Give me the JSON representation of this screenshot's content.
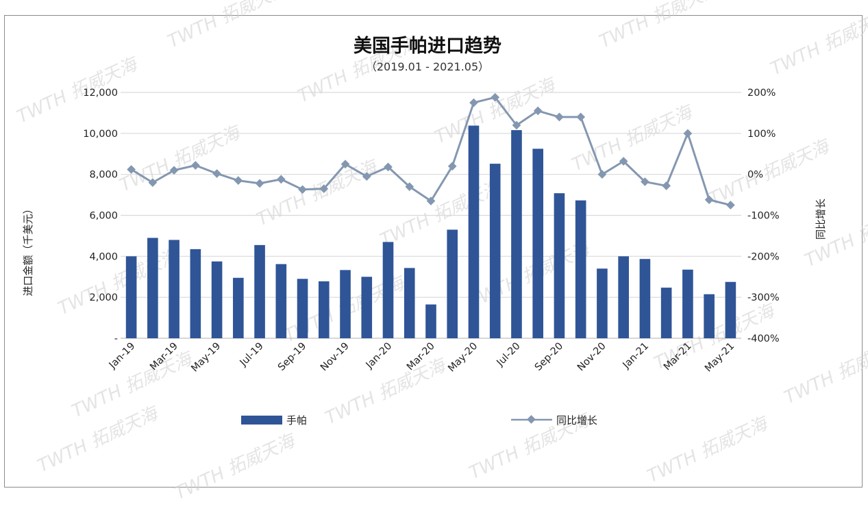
{
  "watermark": "TWTH 拓威天海",
  "chart_data": {
    "type": "bar",
    "title": "美国手帕进口趋势",
    "subtitle": "（2019.01 - 2021.05）",
    "ylabel": "进口金额（千美元）",
    "y2label": "同比增长",
    "ylim": [
      0,
      12000
    ],
    "y_ticks": [
      "-",
      "2,000",
      "4,000",
      "6,000",
      "8,000",
      "10,000",
      "12,000"
    ],
    "y2lim": [
      -400,
      200
    ],
    "y2_ticks": [
      "-400%",
      "-300%",
      "-200%",
      "-100%",
      "0%",
      "100%",
      "200%"
    ],
    "grid": true,
    "legend_position": "bottom",
    "categories": [
      "Jan-19",
      "Feb-19",
      "Mar-19",
      "Apr-19",
      "May-19",
      "Jun-19",
      "Jul-19",
      "Aug-19",
      "Sep-19",
      "Oct-19",
      "Nov-19",
      "Dec-19",
      "Jan-20",
      "Feb-20",
      "Mar-20",
      "Apr-20",
      "May-20",
      "Jun-20",
      "Jul-20",
      "Aug-20",
      "Sep-20",
      "Oct-20",
      "Nov-20",
      "Dec-20",
      "Jan-21",
      "Feb-21",
      "Mar-21",
      "Apr-21",
      "May-21"
    ],
    "x_tick_labels": [
      "Jan-19",
      "",
      "Mar-19",
      "",
      "May-19",
      "",
      "Jul-19",
      "",
      "Sep-19",
      "",
      "Nov-19",
      "",
      "Jan-20",
      "",
      "Mar-20",
      "",
      "May-20",
      "",
      "Jul-20",
      "",
      "Sep-20",
      "",
      "Nov-20",
      "",
      "Jan-21",
      "",
      "Mar-21",
      "",
      "May-21"
    ],
    "series": [
      {
        "name": "手帕",
        "kind": "bar",
        "axis": "left",
        "color": "#2f5597",
        "values": [
          4000,
          4900,
          4800,
          4350,
          3750,
          2950,
          4550,
          3620,
          2900,
          2780,
          3330,
          3000,
          4700,
          3430,
          1650,
          5300,
          10380,
          8520,
          10160,
          9250,
          7080,
          6730,
          3400,
          4000,
          3870,
          2470,
          3350,
          2150,
          2750
        ]
      },
      {
        "name": "同比增长",
        "kind": "line",
        "axis": "right",
        "color": "#8497b0",
        "values": [
          12,
          -20,
          10,
          22,
          2,
          -15,
          -22,
          -12,
          -37,
          -35,
          25,
          -5,
          18,
          -30,
          -65,
          20,
          175,
          188,
          120,
          155,
          140,
          140,
          0,
          32,
          -18,
          -28,
          100,
          -62,
          -75
        ]
      }
    ]
  }
}
